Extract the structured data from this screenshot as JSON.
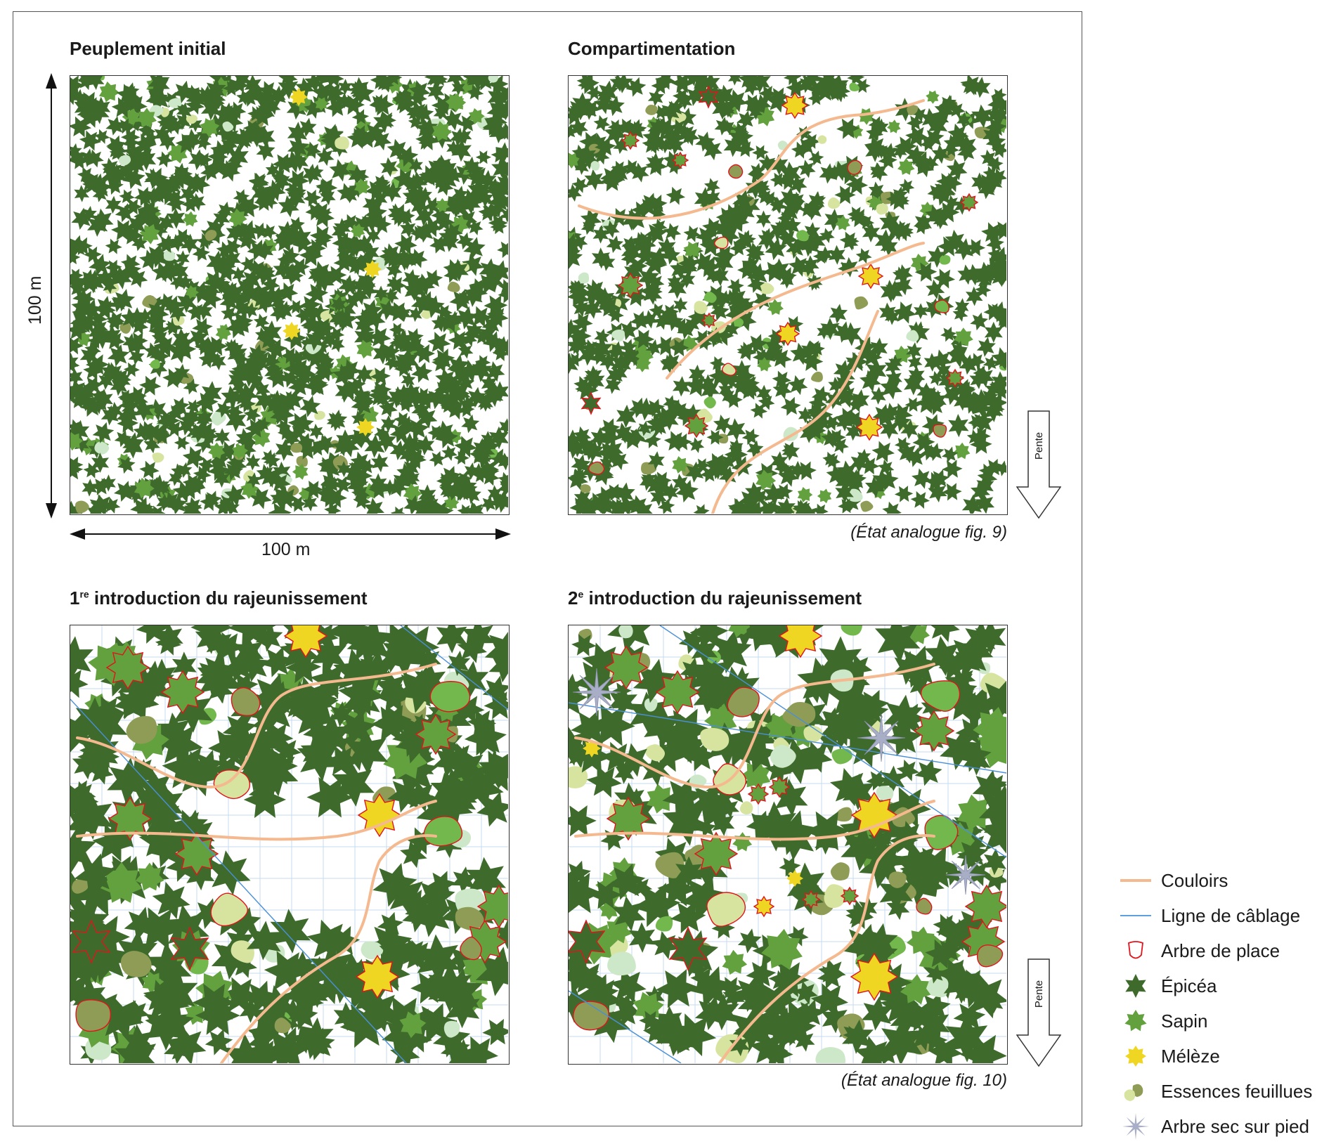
{
  "panels": [
    {
      "title": "Peuplement initial"
    },
    {
      "title": "Compartimentation",
      "caption": "(État analogue fig. 9)"
    },
    {
      "title_pre": "1",
      "title_sup": "re",
      "title_post": " introduction du rajeunissement"
    },
    {
      "title_pre": "2",
      "title_sup": "e",
      "title_post": " introduction du rajeunissement",
      "caption": "(État analogue fig. 10)"
    }
  ],
  "dimensions": {
    "vertical": "100 m",
    "horizontal": "100 m"
  },
  "slope_label": "Pente",
  "legend": [
    {
      "icon": "corridor-line",
      "label": "Couloirs"
    },
    {
      "icon": "cable-line",
      "label": "Ligne de câblage"
    },
    {
      "icon": "red-outline",
      "label": "Arbre de place"
    },
    {
      "icon": "spruce-star",
      "label": "Épicéa"
    },
    {
      "icon": "fir-star",
      "label": "Sapin"
    },
    {
      "icon": "larch-star",
      "label": "Mélèze"
    },
    {
      "icon": "broadleaf-blobs",
      "label": "Essences feuillues"
    },
    {
      "icon": "dead-tree-star",
      "label": "Arbre sec sur pied"
    }
  ],
  "colors": {
    "spruce": "#3e6b2c",
    "fir": "#62a13e",
    "larch": "#eed622",
    "broadleaf_olive": "#8f9c55",
    "broadleaf_light": "#d6e4a0",
    "broadleaf_green": "#72b84c",
    "broadleaf_pale": "#cde8c8",
    "corridor": "#f5b98f",
    "cable": "#4a90d9",
    "grid": "#b9d3ee",
    "tree_of_place": "#e0141c",
    "dead_tree": "#a9aec7"
  }
}
